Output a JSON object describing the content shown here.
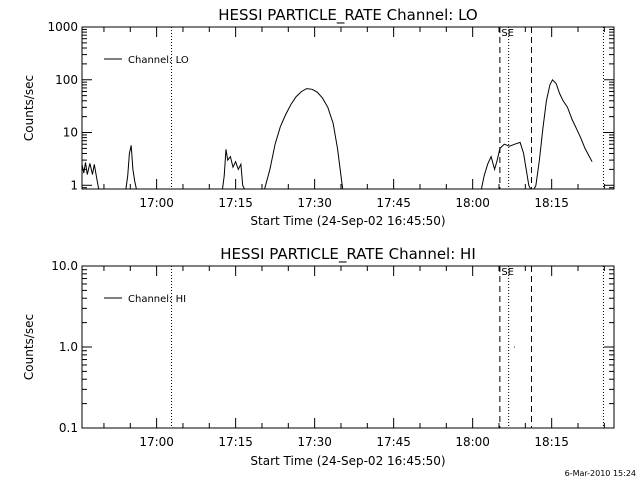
{
  "chart_data": [
    {
      "type": "line",
      "title": "HESSI PARTICLE_RATE Channel: LO",
      "xlabel": "Start Time (24-Sep-02 16:45:50)",
      "ylabel": "Counts/sec",
      "yscale": "log",
      "ylim": [
        0.85,
        1000
      ],
      "xlim": [
        "16:45:50",
        "18:26:50"
      ],
      "yticks": [
        1,
        10,
        100,
        1000
      ],
      "ytick_labels": [
        "1",
        "10",
        "100",
        "1000"
      ],
      "xticks": [
        "17:00",
        "17:15",
        "17:30",
        "17:45",
        "18:00",
        "18:15"
      ],
      "legend": {
        "label": "Channel: LO",
        "placement": "top-left"
      },
      "markers": [
        {
          "time": "17:02:50",
          "style": "dotted"
        },
        {
          "time": "18:05:10",
          "style": "dashed"
        },
        {
          "time": "18:06:50",
          "style": "dotted",
          "label": "SE"
        },
        {
          "time": "18:11:10",
          "style": "dashed"
        },
        {
          "time": "18:24:50",
          "style": "dotted"
        }
      ],
      "series": [
        {
          "segments": [
            [
              [
                "16:45:50",
                2.5
              ],
              [
                "16:46:10",
                1.7
              ],
              [
                "16:46:30",
                2.7
              ],
              [
                "16:46:50",
                1.6
              ],
              [
                "16:47:20",
                2.6
              ],
              [
                "16:47:50",
                1.6
              ],
              [
                "16:48:10",
                2.5
              ],
              [
                "16:48:40",
                1.3
              ],
              [
                "16:49:00",
                0.85
              ]
            ],
            [
              [
                "16:54:10",
                0.85
              ],
              [
                "16:54:30",
                1.5
              ],
              [
                "16:54:50",
                4.0
              ],
              [
                "16:55:10",
                5.7
              ],
              [
                "16:55:30",
                2.0
              ],
              [
                "16:55:50",
                1.2
              ],
              [
                "16:56:10",
                0.85
              ]
            ],
            [
              [
                "17:12:30",
                0.85
              ],
              [
                "17:12:50",
                1.5
              ],
              [
                "17:13:10",
                4.8
              ],
              [
                "17:13:30",
                3.0
              ],
              [
                "17:14:00",
                3.5
              ],
              [
                "17:14:30",
                2.2
              ],
              [
                "17:15:00",
                2.8
              ],
              [
                "17:15:30",
                2.0
              ],
              [
                "17:16:00",
                2.5
              ],
              [
                "17:16:20",
                1.0
              ],
              [
                "17:16:40",
                0.85
              ]
            ],
            [
              [
                "17:20:30",
                0.85
              ],
              [
                "17:21:30",
                2.0
              ],
              [
                "17:22:30",
                6.0
              ],
              [
                "17:23:30",
                13
              ],
              [
                "17:24:30",
                22
              ],
              [
                "17:25:30",
                34
              ],
              [
                "17:26:30",
                48
              ],
              [
                "17:27:30",
                60
              ],
              [
                "17:28:30",
                68
              ],
              [
                "17:29:30",
                66
              ],
              [
                "17:30:30",
                58
              ],
              [
                "17:31:30",
                45
              ],
              [
                "17:32:30",
                30
              ],
              [
                "17:33:30",
                15
              ],
              [
                "17:34:20",
                5.0
              ],
              [
                "17:35:00",
                1.5
              ],
              [
                "17:35:20",
                0.85
              ]
            ],
            [
              [
                "18:01:40",
                0.85
              ],
              [
                "18:02:10",
                1.5
              ],
              [
                "18:02:50",
                2.5
              ],
              [
                "18:03:30",
                3.5
              ],
              [
                "18:04:10",
                2.0
              ],
              [
                "18:04:40",
                3.0
              ],
              [
                "18:05:10",
                5.0
              ],
              [
                "18:06:00",
                6.0
              ],
              [
                "18:07:00",
                5.5
              ],
              [
                "18:08:00",
                6.0
              ],
              [
                "18:09:00",
                6.5
              ],
              [
                "18:09:40",
                4.0
              ],
              [
                "18:10:10",
                2.0
              ],
              [
                "18:10:40",
                1.0
              ],
              [
                "18:11:00",
                0.85
              ]
            ],
            [
              [
                "18:11:40",
                0.85
              ],
              [
                "18:12:00",
                1.0
              ],
              [
                "18:12:40",
                3.0
              ],
              [
                "18:13:20",
                12
              ],
              [
                "18:14:00",
                40
              ],
              [
                "18:14:40",
                80
              ],
              [
                "18:15:10",
                100
              ],
              [
                "18:15:50",
                85
              ],
              [
                "18:16:30",
                55
              ],
              [
                "18:17:10",
                40
              ],
              [
                "18:18:00",
                30
              ],
              [
                "18:18:50",
                18
              ],
              [
                "18:19:40",
                12
              ],
              [
                "18:20:30",
                8
              ],
              [
                "18:21:20",
                5
              ],
              [
                "18:22:10",
                3.5
              ],
              [
                "18:22:40",
                2.8
              ]
            ]
          ]
        }
      ]
    },
    {
      "type": "line",
      "title": "HESSI PARTICLE_RATE Channel: HI",
      "xlabel": "Start Time (24-Sep-02 16:45:50)",
      "ylabel": "Counts/sec",
      "yscale": "log",
      "ylim": [
        0.1,
        10
      ],
      "xlim": [
        "16:45:50",
        "18:26:50"
      ],
      "yticks": [
        0.1,
        1,
        10
      ],
      "ytick_labels": [
        "0.1",
        "1.0",
        "10.0"
      ],
      "xticks": [
        "17:00",
        "17:15",
        "17:30",
        "17:45",
        "18:00",
        "18:15"
      ],
      "legend": {
        "label": "Channel: HI",
        "placement": "top-left"
      },
      "markers": [
        {
          "time": "17:02:50",
          "style": "dotted"
        },
        {
          "time": "18:05:10",
          "style": "dashed"
        },
        {
          "time": "18:06:50",
          "style": "dotted",
          "label": "SE"
        },
        {
          "time": "18:11:10",
          "style": "dashed"
        },
        {
          "time": "18:24:50",
          "style": "dotted"
        }
      ],
      "series": [
        {
          "segments": [
            [
              [
                "18:07:50",
                1.0
              ],
              [
                "18:08:00",
                1.0
              ]
            ]
          ]
        }
      ]
    }
  ],
  "footer": {
    "credit": "6-Mar-2010 15:24"
  }
}
